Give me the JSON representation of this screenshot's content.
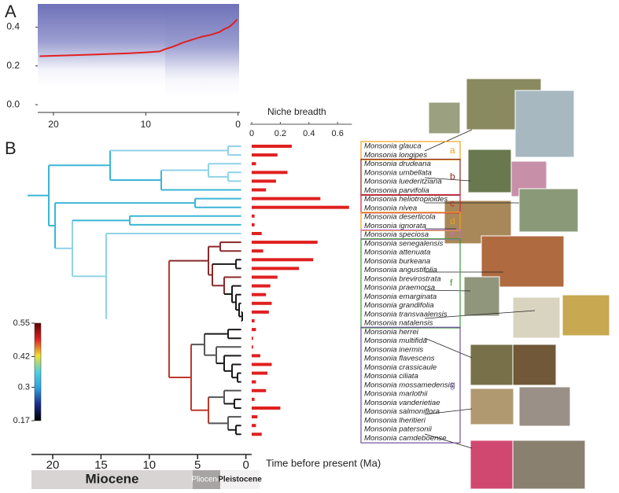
{
  "panel_labels": [
    "A",
    "B"
  ],
  "chart_data": [
    {
      "type": "line",
      "x": [
        21.5,
        18,
        15,
        12,
        10,
        8.5,
        8,
        7,
        6,
        5,
        4,
        3,
        2,
        1.5,
        1,
        0.5,
        0.1
      ],
      "values": [
        0.25,
        0.255,
        0.26,
        0.265,
        0.27,
        0.275,
        0.285,
        0.3,
        0.32,
        0.335,
        0.35,
        0.36,
        0.375,
        0.39,
        0.4,
        0.42,
        0.44
      ],
      "color": "#e02020",
      "xlim": [
        21.7,
        -0.2
      ],
      "ylim": [
        -0.04,
        0.52
      ],
      "xticks": [
        20,
        10,
        0
      ],
      "yticks": [
        {
          "value": 0,
          "label": "0.0"
        },
        0.2,
        0.4
      ]
    },
    {
      "type": "hbar",
      "title": "Niche breadth",
      "color": "#e02020",
      "xlim": [
        0,
        0.7
      ],
      "xticks": [
        0,
        0.2,
        0.4,
        0.6
      ],
      "groups": [
        {
          "label": "a",
          "color": "#f0a020",
          "categories": [
            "Monsonia glauca",
            "Monsonia longipes"
          ]
        },
        {
          "label": "b",
          "color": "#8b2a1a",
          "categories": [
            "Monsonia drudeana",
            "Monsonia umbellata",
            "Monsonia luederitziana",
            "Monsonia parvifolia"
          ]
        },
        {
          "label": "c",
          "color": "#d02040",
          "categories": [
            "Monsonia heliotropioides",
            "Monsonia nivea"
          ]
        },
        {
          "label": "d",
          "color": "#f0a020",
          "categories": [
            "Monsonia deserticola",
            "Monsonia ignorata"
          ]
        },
        {
          "label": "e",
          "color": "#c070c0",
          "categories": [
            "Monsonia speciosa"
          ]
        },
        {
          "label": "f",
          "color": "#3a9a3a",
          "categories": [
            "Monsonia senegalensis",
            "Monsonia attenuata",
            "Monsonia burkeana",
            "Monsonia angustifolia",
            "Monsonia brevirostrata",
            "Monsonia praemorsa",
            "Monsonia emarginata",
            "Monsonia grandifolia",
            "Monsonia transvaalensis",
            "Monsonia natalensis"
          ]
        },
        {
          "label": "g",
          "color": "#7050a0",
          "categories": [
            "Monsonia herrei",
            "Monsonia multifida",
            "Monsonia inermis",
            "Monsonia flavescens",
            "Monsonia crassicaule",
            "Monsonia ciliata",
            "Monsonia mossamedensis",
            "Monsonia marlothii",
            "Monsonia vanderietiae",
            "Monsonia salmoniflora",
            "Monsonia lheritieri",
            "Monsonia patersonii",
            "Monsonia camdeboense"
          ]
        }
      ],
      "values": [
        0.28,
        0.18,
        0.03,
        0.25,
        0.17,
        0.1,
        0.48,
        0.68,
        0.02,
        0.02,
        0.07,
        0.46,
        0.08,
        0.43,
        0.33,
        0.18,
        0.13,
        0.1,
        0.14,
        0.12,
        0.02,
        0.03,
        0.01,
        0.01,
        0.06,
        0.14,
        0.11,
        0.03,
        0.1,
        0.02,
        0.2,
        0.04,
        0.03,
        0.07
      ],
      "time_axis": {
        "label": "Time before present (Ma)",
        "xlim": [
          22.2,
          -0.6
        ],
        "xticks": [
          20,
          15,
          10,
          5,
          0
        ],
        "epochs": [
          "Miocene",
          "Pliocene",
          "Pleistocene"
        ]
      }
    },
    {
      "type": "colorbar",
      "clim": [
        0.17,
        0.55
      ],
      "ticks": [
        0.55,
        0.42,
        0.3,
        0.17
      ],
      "colors": [
        "#000000",
        "#1a2a8a",
        "#2aa0e0",
        "#50d0e0",
        "#f0e030",
        "#e02020",
        "#600000"
      ]
    }
  ]
}
